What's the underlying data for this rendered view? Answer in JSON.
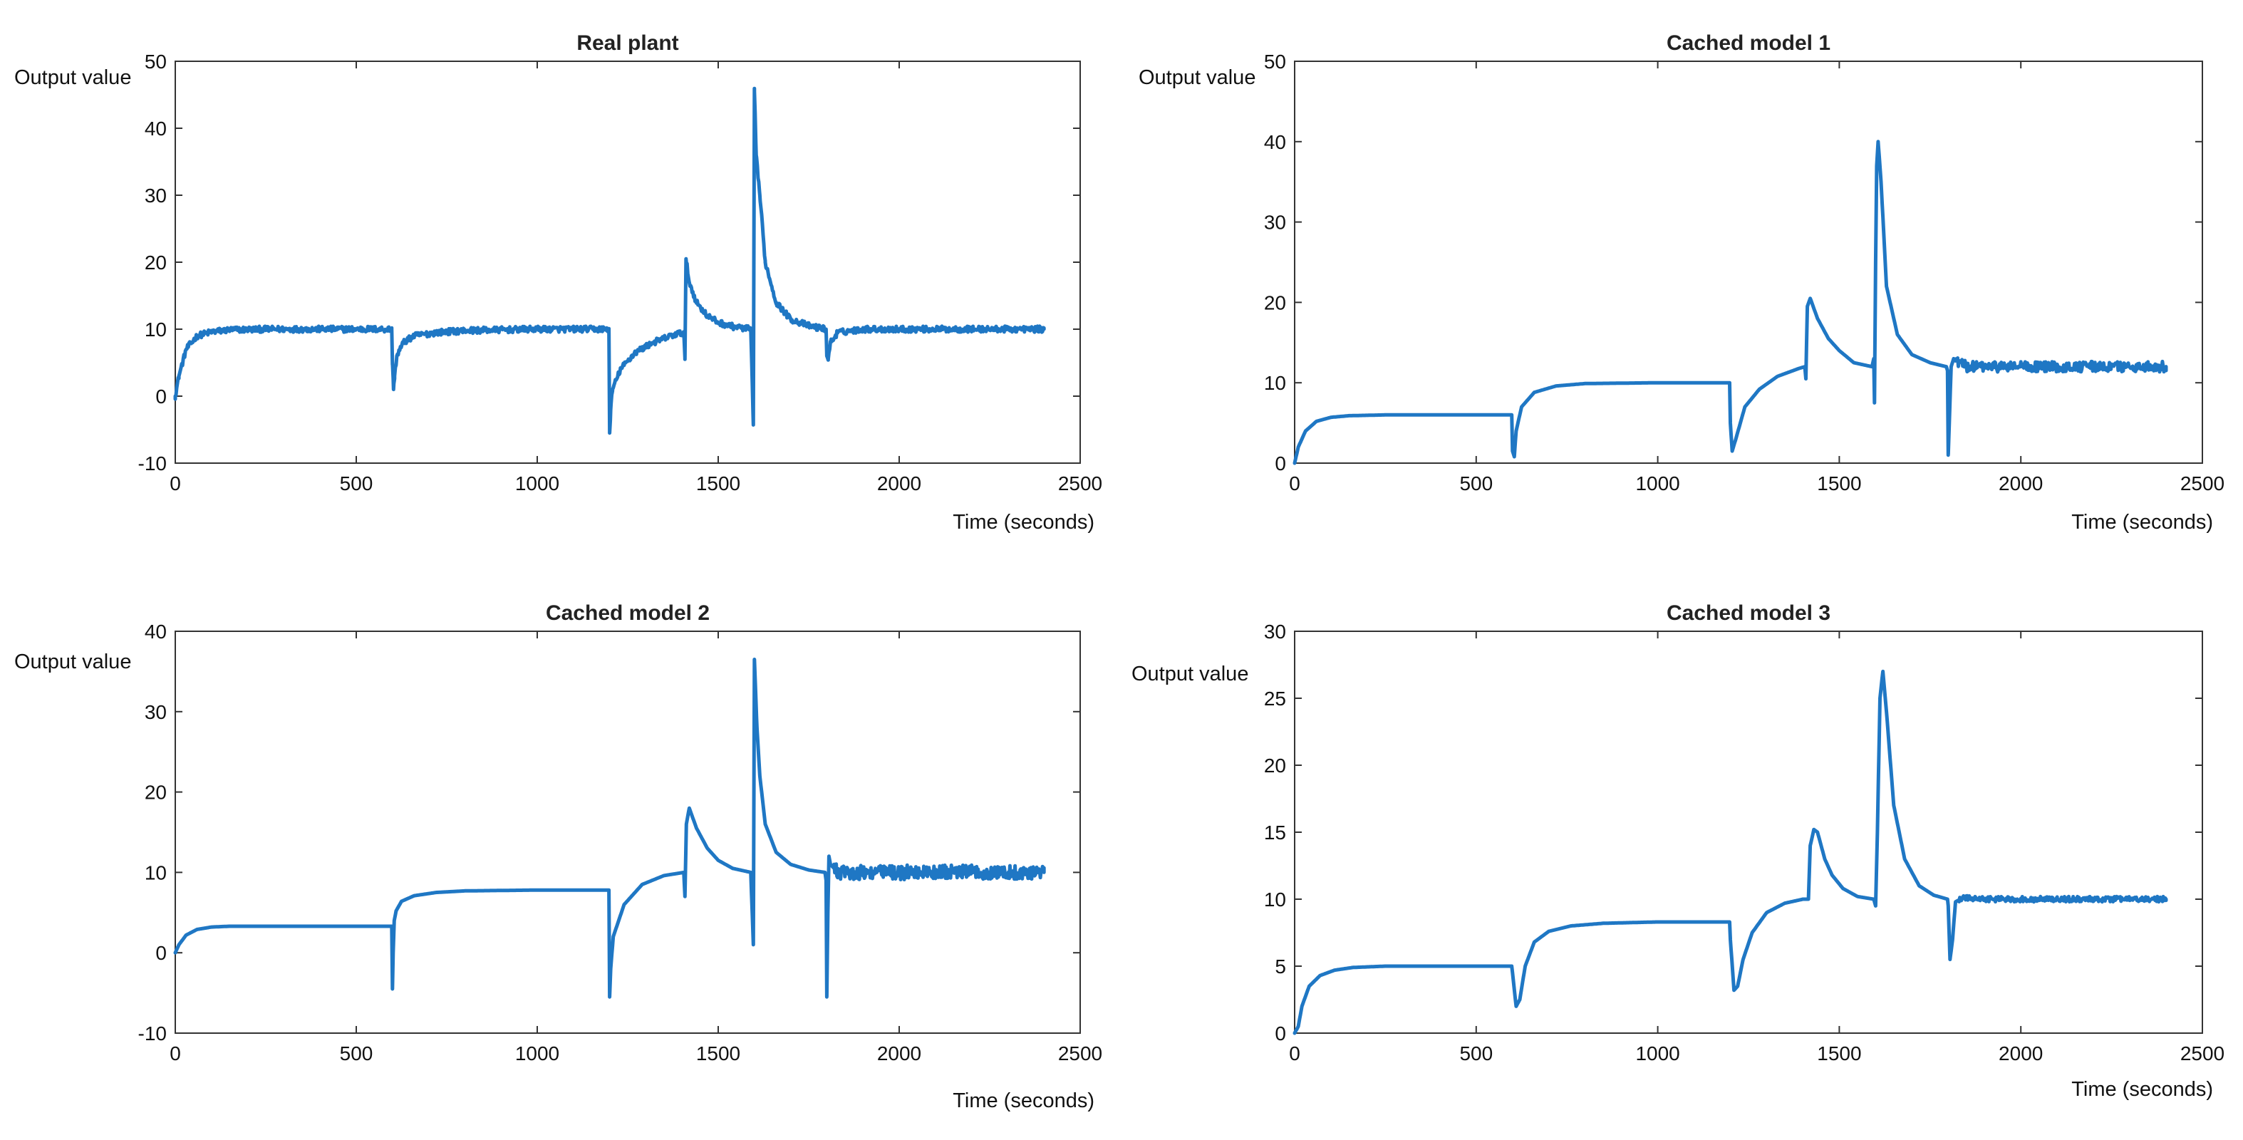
{
  "figure": {
    "panel_count": 4
  },
  "chart_data": [
    {
      "type": "line",
      "title": "Real plant",
      "xlabel": "Time (seconds)",
      "ylabel": "Output value",
      "xlim": [
        0,
        2500
      ],
      "ylim": [
        -10,
        50
      ],
      "xticks": [
        0,
        500,
        1000,
        1500,
        2000,
        2500
      ],
      "yticks": [
        -10,
        0,
        10,
        20,
        30,
        40,
        50
      ],
      "grid": false,
      "color": "#1f77c4",
      "noise": {
        "amplitude": 0.45,
        "from": 0,
        "to": 2400
      },
      "series": [
        {
          "name": "Output value",
          "x": [
            0,
            10,
            30,
            60,
            100,
            150,
            250,
            400,
            598,
            600,
            603,
            606,
            612,
            630,
            660,
            720,
            800,
            1000,
            1198,
            1200,
            1203,
            1208,
            1230,
            1270,
            1320,
            1380,
            1405,
            1408,
            1411,
            1420,
            1440,
            1470,
            1500,
            1540,
            1590,
            1597,
            1600,
            1603,
            1605,
            1615,
            1630,
            1660,
            1700,
            1750,
            1798,
            1800,
            1804,
            1810,
            1830,
            1900,
            2100,
            2400
          ],
          "y": [
            0,
            3,
            7,
            9,
            9.6,
            9.9,
            10,
            10,
            10,
            5,
            1,
            3,
            6,
            8,
            9,
            9.5,
            9.8,
            10,
            10,
            -5.5,
            -2,
            1,
            4,
            6.5,
            8,
            9.2,
            9.5,
            5.5,
            20.5,
            17,
            14,
            12,
            11,
            10.4,
            10,
            -4.3,
            45.5,
            40,
            36,
            30,
            20,
            14,
            11.5,
            10.5,
            10,
            6,
            5.5,
            8,
            9.5,
            10,
            10,
            10
          ]
        }
      ]
    },
    {
      "type": "line",
      "title": "Cached model 1",
      "xlabel": "Time (seconds)",
      "ylabel": "Output value",
      "xlim": [
        0,
        2500
      ],
      "ylim": [
        0,
        50
      ],
      "xticks": [
        0,
        500,
        1000,
        1500,
        2000,
        2500
      ],
      "yticks": [
        0,
        10,
        20,
        30,
        40,
        50
      ],
      "grid": false,
      "color": "#1f77c4",
      "noise": {
        "amplitude": 0.65,
        "from": 1820,
        "to": 2400
      },
      "series": [
        {
          "name": "Output value",
          "x": [
            0,
            10,
            30,
            60,
            100,
            150,
            250,
            400,
            598,
            600,
            605,
            610,
            625,
            660,
            720,
            800,
            1000,
            1198,
            1200,
            1205,
            1215,
            1240,
            1280,
            1330,
            1390,
            1405,
            1408,
            1412,
            1420,
            1440,
            1470,
            1500,
            1540,
            1590,
            1595,
            1597,
            1600,
            1603,
            1607,
            1615,
            1630,
            1660,
            1700,
            1750,
            1795,
            1798,
            1800,
            1803,
            1808,
            1815,
            1850,
            2000,
            2400
          ],
          "y": [
            0,
            2,
            4,
            5.2,
            5.7,
            5.9,
            6,
            6,
            6,
            1.5,
            0.8,
            4,
            7,
            8.8,
            9.6,
            9.9,
            10,
            10,
            5,
            1.5,
            3,
            7,
            9.2,
            10.8,
            11.8,
            12,
            10.5,
            19.5,
            20.5,
            18,
            15.5,
            14,
            12.5,
            12,
            13,
            7.5,
            25,
            37,
            40,
            35,
            22,
            16,
            13.5,
            12.5,
            12,
            11.5,
            1,
            5,
            12,
            13,
            12,
            12,
            12
          ]
        }
      ]
    },
    {
      "type": "line",
      "title": "Cached model 2",
      "xlabel": "Time (seconds)",
      "ylabel": "Output value",
      "xlim": [
        0,
        2500
      ],
      "ylim": [
        -10,
        40
      ],
      "xticks": [
        0,
        500,
        1000,
        1500,
        2000,
        2500
      ],
      "yticks": [
        -10,
        0,
        10,
        20,
        30,
        40
      ],
      "grid": false,
      "color": "#1f77c4",
      "noise": {
        "amplitude": 0.9,
        "from": 1820,
        "to": 2400
      },
      "series": [
        {
          "name": "Output value",
          "x": [
            0,
            10,
            30,
            60,
            100,
            150,
            250,
            400,
            598,
            600,
            602,
            605,
            610,
            625,
            660,
            720,
            800,
            1000,
            1198,
            1200,
            1203,
            1210,
            1240,
            1290,
            1350,
            1405,
            1408,
            1412,
            1420,
            1440,
            1470,
            1500,
            1540,
            1590,
            1597,
            1600,
            1603,
            1607,
            1615,
            1630,
            1660,
            1700,
            1750,
            1795,
            1798,
            1800,
            1803,
            1806,
            1810,
            1830,
            1900,
            2100,
            2400
          ],
          "y": [
            0,
            1,
            2.2,
            2.9,
            3.2,
            3.3,
            3.3,
            3.3,
            3.3,
            -4.5,
            0,
            4,
            5.2,
            6.4,
            7.1,
            7.5,
            7.7,
            7.8,
            7.8,
            -5.5,
            -2,
            2,
            6,
            8.5,
            9.6,
            10,
            7,
            16,
            18,
            15.5,
            13,
            11.5,
            10.5,
            10,
            1,
            36.5,
            33,
            28,
            22,
            16,
            12.5,
            11,
            10.3,
            10,
            9,
            -5.5,
            5,
            12,
            11,
            10,
            10,
            10,
            10
          ]
        }
      ]
    },
    {
      "type": "line",
      "title": "Cached model 3",
      "xlabel": "Time (seconds)",
      "ylabel": "Output value",
      "xlim": [
        0,
        2500
      ],
      "ylim": [
        0,
        30
      ],
      "xticks": [
        0,
        500,
        1000,
        1500,
        2000,
        2500
      ],
      "yticks": [
        0,
        5,
        10,
        15,
        20,
        25,
        30
      ],
      "grid": false,
      "color": "#1f77c4",
      "noise": {
        "amplitude": 0.2,
        "from": 1830,
        "to": 2400
      },
      "series": [
        {
          "name": "Output value",
          "x": [
            0,
            10,
            20,
            40,
            70,
            110,
            160,
            250,
            400,
            598,
            600,
            610,
            620,
            635,
            660,
            700,
            760,
            850,
            1000,
            1198,
            1200,
            1210,
            1220,
            1235,
            1260,
            1300,
            1350,
            1400,
            1415,
            1420,
            1430,
            1440,
            1460,
            1480,
            1510,
            1550,
            1595,
            1600,
            1605,
            1612,
            1620,
            1630,
            1650,
            1680,
            1720,
            1760,
            1798,
            1800,
            1805,
            1812,
            1820,
            1840,
            1900,
            2100,
            2400
          ],
          "y": [
            0,
            0.5,
            2,
            3.5,
            4.3,
            4.7,
            4.9,
            5,
            5,
            5,
            4.5,
            2,
            2.5,
            5,
            6.8,
            7.6,
            8,
            8.2,
            8.3,
            8.3,
            7,
            3.2,
            3.5,
            5.5,
            7.5,
            9,
            9.7,
            10,
            10,
            14,
            15.2,
            15,
            13,
            11.8,
            10.8,
            10.2,
            10,
            9.5,
            15,
            25,
            27,
            24,
            17,
            13,
            11,
            10.3,
            10,
            9.5,
            5.5,
            7,
            9.8,
            10.1,
            10,
            10,
            10
          ]
        }
      ]
    }
  ]
}
